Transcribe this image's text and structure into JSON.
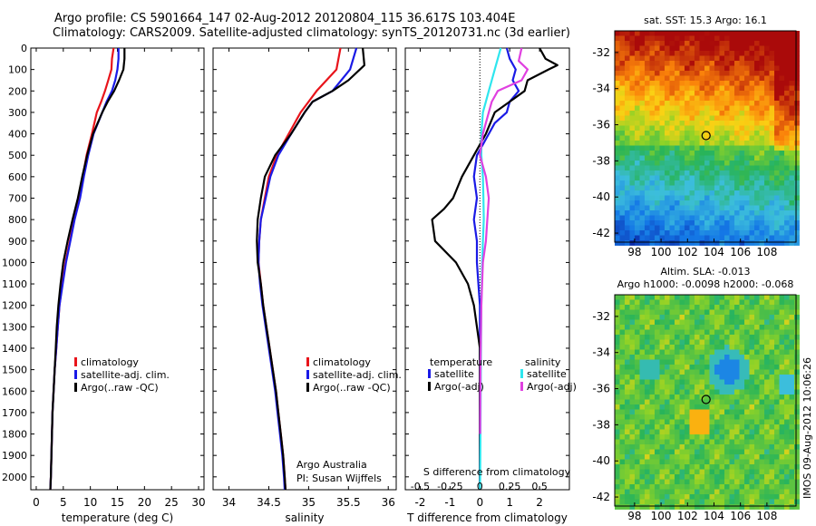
{
  "header": {
    "line1": "Argo profile: CS 5901664_147 02-Aug-2012 20120804_115 36.617S 103.404E",
    "line2": "Climatology: CARS2009. Satellite-adjusted climatology: synTS_20120731.nc (3d earlier)"
  },
  "credit": "IMOS 09-Aug-2012 10:06:26",
  "colors": {
    "clim": "#e8141b",
    "sat": "#1a1ae6",
    "argo": "#000000",
    "sat_s": "#2ee6ee",
    "argo_s": "#e040e0"
  },
  "chart_data": [
    {
      "type": "line",
      "id": "temperature",
      "xlabel": "temperature (deg C)",
      "xlim": [
        -1,
        31
      ],
      "xticks": [
        0,
        5,
        10,
        15,
        20,
        25,
        30
      ],
      "ylim": [
        2060,
        0
      ],
      "yticks": [
        0,
        100,
        200,
        300,
        400,
        500,
        600,
        700,
        800,
        900,
        1000,
        1100,
        1200,
        1300,
        1400,
        1500,
        1600,
        1700,
        1800,
        1900,
        2000
      ],
      "legend": [
        "climatology",
        "satellite-adj. clim.",
        "Argo(..raw -QC)"
      ],
      "series": [
        {
          "name": "climatology",
          "points": [
            [
              14.3,
              0
            ],
            [
              14.0,
              50
            ],
            [
              13.9,
              100
            ],
            [
              13.3,
              150
            ],
            [
              12.7,
              200
            ],
            [
              12.0,
              250
            ],
            [
              11.2,
              300
            ],
            [
              10.3,
              400
            ],
            [
              9.3,
              500
            ],
            [
              8.6,
              600
            ],
            [
              8.0,
              700
            ],
            [
              7.0,
              800
            ],
            [
              6.2,
              900
            ],
            [
              5.4,
              1000
            ],
            [
              4.8,
              1100
            ],
            [
              4.3,
              1200
            ],
            [
              4.0,
              1300
            ],
            [
              3.7,
              1400
            ],
            [
              3.4,
              1500
            ],
            [
              3.2,
              1600
            ],
            [
              3.0,
              1700
            ],
            [
              2.9,
              1800
            ],
            [
              2.8,
              1900
            ],
            [
              2.7,
              2000
            ],
            [
              2.6,
              2060
            ]
          ]
        },
        {
          "name": "satellite-adj. clim.",
          "points": [
            [
              15.2,
              0
            ],
            [
              15.2,
              50
            ],
            [
              15.0,
              100
            ],
            [
              14.6,
              150
            ],
            [
              14.0,
              200
            ],
            [
              13.0,
              250
            ],
            [
              12.2,
              300
            ],
            [
              10.6,
              400
            ],
            [
              9.6,
              500
            ],
            [
              8.8,
              600
            ],
            [
              8.1,
              700
            ],
            [
              7.1,
              800
            ],
            [
              6.3,
              900
            ],
            [
              5.5,
              1000
            ],
            [
              4.9,
              1100
            ],
            [
              4.3,
              1200
            ],
            [
              4.0,
              1300
            ],
            [
              3.7,
              1400
            ],
            [
              3.4,
              1500
            ],
            [
              3.2,
              1600
            ],
            [
              3.0,
              1700
            ],
            [
              2.9,
              1800
            ],
            [
              2.8,
              1900
            ],
            [
              2.7,
              2000
            ],
            [
              2.6,
              2060
            ]
          ]
        },
        {
          "name": "Argo(..raw -QC)",
          "points": [
            [
              16.3,
              0
            ],
            [
              16.3,
              50
            ],
            [
              16.1,
              100
            ],
            [
              15.3,
              150
            ],
            [
              14.4,
              200
            ],
            [
              13.2,
              250
            ],
            [
              12.2,
              300
            ],
            [
              10.5,
              400
            ],
            [
              9.4,
              500
            ],
            [
              8.5,
              600
            ],
            [
              7.7,
              700
            ],
            [
              6.7,
              800
            ],
            [
              5.8,
              900
            ],
            [
              5.0,
              1000
            ],
            [
              4.5,
              1100
            ],
            [
              4.1,
              1200
            ],
            [
              3.8,
              1300
            ],
            [
              3.6,
              1400
            ],
            [
              3.4,
              1500
            ],
            [
              3.2,
              1600
            ],
            [
              3.0,
              1700
            ],
            [
              2.9,
              1800
            ],
            [
              2.8,
              1900
            ],
            [
              2.7,
              2000
            ],
            [
              2.6,
              2060
            ]
          ]
        }
      ]
    },
    {
      "type": "line",
      "id": "salinity",
      "xlabel": "salinity",
      "xlim": [
        33.8,
        36.1
      ],
      "xticks": [
        34,
        34.5,
        35,
        35.5,
        36
      ],
      "ylim": [
        2060,
        0
      ],
      "legend": [
        "climatology",
        "satellite-adj. clim.",
        "Argo(..raw -QC)"
      ],
      "annotation": [
        "Argo Australia",
        "PI: Susan Wijffels"
      ],
      "series": [
        {
          "name": "climatology",
          "points": [
            [
              35.4,
              0
            ],
            [
              35.35,
              100
            ],
            [
              35.1,
              200
            ],
            [
              35.0,
              250
            ],
            [
              34.9,
              300
            ],
            [
              34.75,
              400
            ],
            [
              34.6,
              500
            ],
            [
              34.5,
              600
            ],
            [
              34.45,
              700
            ],
            [
              34.4,
              800
            ],
            [
              34.38,
              900
            ],
            [
              34.37,
              1000
            ],
            [
              34.4,
              1100
            ],
            [
              34.43,
              1200
            ],
            [
              34.47,
              1300
            ],
            [
              34.51,
              1400
            ],
            [
              34.55,
              1500
            ],
            [
              34.59,
              1600
            ],
            [
              34.62,
              1700
            ],
            [
              34.65,
              1800
            ],
            [
              34.68,
              1900
            ],
            [
              34.7,
              2000
            ],
            [
              34.71,
              2060
            ]
          ]
        },
        {
          "name": "satellite-adj. clim.",
          "points": [
            [
              35.6,
              0
            ],
            [
              35.52,
              100
            ],
            [
              35.3,
              200
            ],
            [
              35.05,
              250
            ],
            [
              34.95,
              300
            ],
            [
              34.78,
              400
            ],
            [
              34.62,
              500
            ],
            [
              34.52,
              600
            ],
            [
              34.46,
              700
            ],
            [
              34.4,
              800
            ],
            [
              34.38,
              900
            ],
            [
              34.37,
              1000
            ],
            [
              34.39,
              1100
            ],
            [
              34.42,
              1200
            ],
            [
              34.46,
              1300
            ],
            [
              34.5,
              1400
            ],
            [
              34.54,
              1500
            ],
            [
              34.58,
              1600
            ],
            [
              34.61,
              1700
            ],
            [
              34.64,
              1800
            ],
            [
              34.67,
              1900
            ],
            [
              34.69,
              2000
            ],
            [
              34.7,
              2060
            ]
          ]
        },
        {
          "name": "Argo(..raw -QC)",
          "points": [
            [
              35.68,
              0
            ],
            [
              35.7,
              80
            ],
            [
              35.5,
              150
            ],
            [
              35.3,
              200
            ],
            [
              35.05,
              250
            ],
            [
              34.95,
              300
            ],
            [
              34.78,
              400
            ],
            [
              34.58,
              500
            ],
            [
              34.45,
              600
            ],
            [
              34.4,
              700
            ],
            [
              34.36,
              800
            ],
            [
              34.35,
              900
            ],
            [
              34.36,
              1000
            ],
            [
              34.4,
              1100
            ],
            [
              34.43,
              1200
            ],
            [
              34.47,
              1300
            ],
            [
              34.51,
              1400
            ],
            [
              34.55,
              1500
            ],
            [
              34.59,
              1600
            ],
            [
              34.62,
              1700
            ],
            [
              34.65,
              1800
            ],
            [
              34.68,
              1900
            ],
            [
              34.7,
              2000
            ],
            [
              34.71,
              2060
            ]
          ]
        }
      ]
    },
    {
      "type": "line",
      "id": "differences",
      "xlabel": "T difference from climatology",
      "xlabel_top": "S difference from climatology",
      "xlim": [
        -2.5,
        3.0
      ],
      "xticks": [
        -2,
        -1,
        0,
        1,
        2
      ],
      "sticks": [
        "-0.5",
        "-0.25",
        "0",
        "0.25",
        "0.5"
      ],
      "legend_headers": [
        "temperature",
        "salinity"
      ],
      "legend": [
        "satellite",
        "Argo(-adj)",
        "satellite",
        "Argo(-adj)"
      ],
      "series": [
        {
          "name": "satellite",
          "kind": "temperature",
          "points": [
            [
              0.9,
              0
            ],
            [
              1.0,
              50
            ],
            [
              1.2,
              100
            ],
            [
              1.1,
              150
            ],
            [
              1.3,
              200
            ],
            [
              1.0,
              250
            ],
            [
              0.9,
              300
            ],
            [
              0.5,
              350
            ],
            [
              0.3,
              400
            ],
            [
              0.1,
              450
            ],
            [
              -0.1,
              500
            ],
            [
              -0.2,
              600
            ],
            [
              -0.1,
              700
            ],
            [
              -0.2,
              800
            ],
            [
              -0.1,
              900
            ],
            [
              -0.1,
              1000
            ],
            [
              0,
              1200
            ],
            [
              0,
              1500
            ],
            [
              0,
              2000
            ],
            [
              0,
              2060
            ]
          ]
        },
        {
          "name": "Argo(-adj)",
          "kind": "temperature",
          "points": [
            [
              2.0,
              0
            ],
            [
              2.2,
              50
            ],
            [
              2.6,
              80
            ],
            [
              2.3,
              100
            ],
            [
              1.6,
              150
            ],
            [
              1.5,
              200
            ],
            [
              1.0,
              250
            ],
            [
              0.5,
              300
            ],
            [
              0.2,
              400
            ],
            [
              -0.2,
              500
            ],
            [
              -0.6,
              600
            ],
            [
              -0.9,
              700
            ],
            [
              -1.2,
              750
            ],
            [
              -1.6,
              800
            ],
            [
              -1.5,
              900
            ],
            [
              -0.8,
              1000
            ],
            [
              -0.4,
              1100
            ],
            [
              -0.2,
              1200
            ],
            [
              -0.1,
              1300
            ],
            [
              0,
              1400
            ],
            [
              0,
              2000
            ],
            [
              0,
              2060
            ]
          ]
        },
        {
          "name": "satellite",
          "kind": "salinity",
          "points": [
            [
              0.7,
              0
            ],
            [
              0.6,
              50
            ],
            [
              0.5,
              100
            ],
            [
              0.4,
              150
            ],
            [
              0.3,
              200
            ],
            [
              0.2,
              250
            ],
            [
              0.1,
              300
            ],
            [
              0.05,
              400
            ],
            [
              0.05,
              500
            ],
            [
              0.1,
              600
            ],
            [
              0.12,
              700
            ],
            [
              0.13,
              800
            ],
            [
              0.1,
              900
            ],
            [
              0.08,
              1000
            ],
            [
              0.05,
              1200
            ],
            [
              0.03,
              1500
            ],
            [
              0.01,
              2000
            ],
            [
              0,
              2060
            ]
          ]
        },
        {
          "name": "Argo(-adj)",
          "kind": "salinity",
          "points": [
            [
              1.4,
              0
            ],
            [
              1.3,
              60
            ],
            [
              1.6,
              100
            ],
            [
              1.4,
              150
            ],
            [
              0.6,
              200
            ],
            [
              0.4,
              250
            ],
            [
              0.3,
              300
            ],
            [
              0.1,
              400
            ],
            [
              0.0,
              500
            ],
            [
              0.2,
              600
            ],
            [
              0.3,
              700
            ],
            [
              0.25,
              800
            ],
            [
              0.2,
              900
            ],
            [
              0.1,
              1000
            ],
            [
              0.05,
              1200
            ],
            [
              0.02,
              1500
            ],
            [
              0.01,
              1800
            ]
          ]
        }
      ]
    },
    {
      "type": "heatmap",
      "id": "sst_map",
      "title": "sat. SST: 15.3  Argo: 16.1",
      "xticks": [
        98,
        100,
        102,
        104,
        106,
        108
      ],
      "yticks": [
        -32,
        -34,
        -36,
        -38,
        -40,
        -42
      ],
      "xlim": [
        96.5,
        110.2
      ],
      "ylim": [
        -42.5,
        -30.8
      ],
      "marker": [
        103.4,
        -36.6
      ]
    },
    {
      "type": "heatmap",
      "id": "sla_map",
      "title": "Altim. SLA: -0.013",
      "subtitle": "Argo h1000: -0.0098 h2000: -0.068",
      "xticks": [
        98,
        100,
        102,
        104,
        106,
        108
      ],
      "yticks": [
        -32,
        -34,
        -36,
        -38,
        -40,
        -42
      ],
      "xlim": [
        96.5,
        110.2
      ],
      "ylim": [
        -42.5,
        -30.8
      ],
      "marker": [
        103.4,
        -36.6
      ]
    }
  ]
}
